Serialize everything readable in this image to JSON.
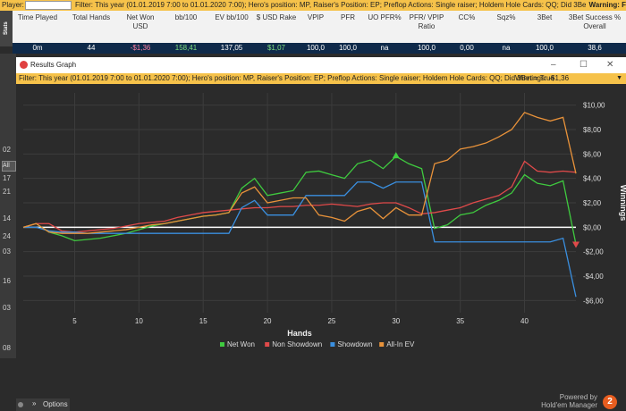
{
  "top_filter": {
    "player_label": "Player:",
    "filter_text": "Filter: This year (01.01.2019 7:00 to 01.01.2020 7:00); Hero's position: MP, Raiser's Position: EP; Preflop Actions: Single raiser; Holdem Hole Cards: QQ; Did 3Bet = True",
    "warning": "Warning: F"
  },
  "stats_tab": "Stats",
  "stats_table": {
    "headers": [
      "Time Played",
      "Total Hands",
      "Net Won USD",
      "bb/100",
      "EV bb/100",
      "$ USD Rake",
      "VPIP",
      "PFR",
      "UO PFR%",
      "PFR/ VPIP Ratio",
      "CC%",
      "Sqz%",
      "3Bet",
      "3Bet Success % Overall"
    ],
    "row": [
      "0m",
      "44",
      "-$1,36",
      "158,41",
      "137,05",
      "$1,07",
      "100,0",
      "100,0",
      "na",
      "100,0",
      "0,00",
      "na",
      "100,0",
      "38,6"
    ]
  },
  "left_strip": {
    "labels": [
      "02",
      "17",
      "21",
      "14",
      "24",
      "03",
      "16",
      "03",
      "08"
    ],
    "all_label": "All"
  },
  "window": {
    "title": "Results Graph",
    "controls": [
      "–",
      "☐",
      "✕"
    ],
    "filter_text": "Filter: This year (01.01.2019 7:00 to 01.01.2020 7:00); Hero's position: MP, Raiser's Position: EP; Preflop Actions: Single raiser; Holdem Hole Cards: QQ; Did 3Bet = True",
    "winnings_text": "Winnings: -$1,36"
  },
  "colors": {
    "net_won": "#3fca3f",
    "non_showdown": "#e04a4a",
    "showdown": "#3a8fdf",
    "all_in_ev": "#e8923a",
    "zero_line": "#ffffff",
    "grid": "#3c3c3c",
    "plot_bg": "#2b2b2b"
  },
  "chart_data": {
    "type": "line",
    "xlabel": "Hands",
    "ylabel": "Winnings",
    "x_ticks": [
      5,
      10,
      15,
      20,
      25,
      30,
      35,
      40
    ],
    "y_ticks": [
      10,
      8,
      6,
      4,
      2,
      0,
      -2,
      -4,
      -6
    ],
    "y_tick_labels": [
      "$10,00",
      "$8,00",
      "$6,00",
      "$4,00",
      "$2,00",
      "$0,00",
      "-$2,00",
      "-$4,00",
      "-$6,00"
    ],
    "xlim": [
      1,
      44
    ],
    "ylim": [
      -7,
      11
    ],
    "legend_position": "bottom-center",
    "series": [
      {
        "name": "Net Won",
        "color": "#3fca3f",
        "values": [
          0,
          0.3,
          -0.4,
          -0.7,
          -1.1,
          -1.0,
          -0.9,
          -0.7,
          -0.5,
          -0.2,
          0.1,
          0.3,
          0.5,
          0.7,
          0.9,
          1.0,
          1.2,
          3.2,
          4.0,
          2.6,
          2.8,
          3.0,
          4.5,
          4.6,
          4.3,
          4.0,
          5.2,
          5.5,
          4.8,
          5.8,
          5.2,
          4.8,
          -0.1,
          0.2,
          1.0,
          1.2,
          1.8,
          2.2,
          2.8,
          4.3,
          3.6,
          3.4,
          3.8,
          -1.4
        ]
      },
      {
        "name": "Non Showdown",
        "color": "#e04a4a",
        "values": [
          0,
          0.3,
          0.3,
          -0.3,
          -0.4,
          -0.3,
          -0.2,
          -0.1,
          0.1,
          0.3,
          0.4,
          0.5,
          0.8,
          1.0,
          1.2,
          1.3,
          1.4,
          1.5,
          1.6,
          1.6,
          1.7,
          1.7,
          1.8,
          1.8,
          1.9,
          1.8,
          1.7,
          1.9,
          2.0,
          2.0,
          1.6,
          1.1,
          1.2,
          1.4,
          1.6,
          2.0,
          2.3,
          2.6,
          3.3,
          5.4,
          4.6,
          4.5,
          4.6,
          4.5
        ]
      },
      {
        "name": "Showdown",
        "color": "#3a8fdf",
        "values": [
          0,
          0,
          -0.3,
          -0.4,
          -0.4,
          -0.5,
          -0.5,
          -0.5,
          -0.5,
          -0.5,
          -0.5,
          -0.5,
          -0.5,
          -0.5,
          -0.5,
          -0.5,
          -0.5,
          1.6,
          2.2,
          1.0,
          1.0,
          1.0,
          2.6,
          2.6,
          2.6,
          2.6,
          3.7,
          3.7,
          3.2,
          3.7,
          3.7,
          3.7,
          -1.2,
          -1.2,
          -1.2,
          -1.2,
          -1.2,
          -1.2,
          -1.2,
          -1.2,
          -1.2,
          -1.2,
          -0.9,
          -5.7
        ]
      },
      {
        "name": "All-In EV",
        "color": "#e8923a",
        "values": [
          0,
          0.3,
          -0.4,
          -0.5,
          -0.5,
          -0.5,
          -0.4,
          -0.3,
          -0.2,
          0,
          0.2,
          0.3,
          0.5,
          0.7,
          0.9,
          1.0,
          1.2,
          2.8,
          3.3,
          2.0,
          2.2,
          2.4,
          2.4,
          1.0,
          0.8,
          0.5,
          1.3,
          1.6,
          0.7,
          1.6,
          1.0,
          1.0,
          5.2,
          5.5,
          6.4,
          6.6,
          6.9,
          7.4,
          8.0,
          9.4,
          9.0,
          8.7,
          9.0,
          4.4
        ]
      }
    ],
    "markers": [
      {
        "series": "Net Won",
        "x": 30,
        "y": 5.8,
        "shape": "triangle-up",
        "color": "#3fca3f"
      },
      {
        "series": "Net Won",
        "x": 44,
        "y": -1.4,
        "shape": "triangle-down",
        "color": "#e04a4a"
      }
    ]
  },
  "options": {
    "label": "Options"
  },
  "brand": {
    "powered_by": "Powered by",
    "name": "Hold'em Manager",
    "logo_mark": "2"
  }
}
